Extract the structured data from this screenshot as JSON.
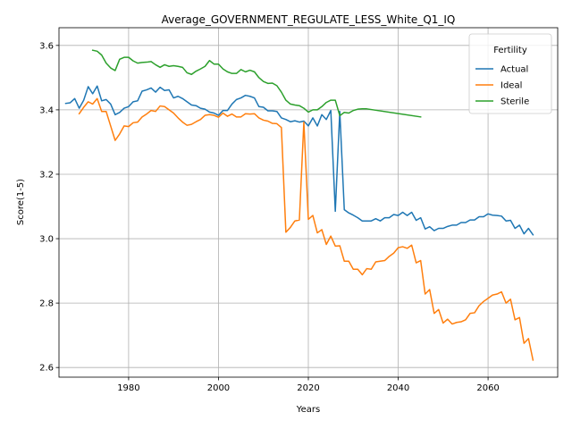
{
  "chart_data": {
    "type": "line",
    "title": "Average_GOVERNMENT_REGULATE_LESS_White_Q1_IQ",
    "xlabel": "Years",
    "ylabel": "Score(1-5)",
    "xlim": [
      1964.5,
      2075.5
    ],
    "ylim": [
      2.57,
      3.655
    ],
    "xticks": [
      1980,
      2000,
      2020,
      2040,
      2060
    ],
    "yticks": [
      2.6,
      2.8,
      3.0,
      3.2,
      3.4,
      3.6
    ],
    "ytick_labels": [
      "2.6",
      "2.8",
      "3.0",
      "3.2",
      "3.4",
      "3.6"
    ],
    "grid": true,
    "legend": {
      "title": "Fertility",
      "position": "top-right"
    },
    "series": [
      {
        "name": "Actual",
        "color": "#1f77b4",
        "x": [
          1966,
          1967,
          1968,
          1969,
          1970,
          1971,
          1972,
          1973,
          1974,
          1975,
          1976,
          1977,
          1978,
          1979,
          1980,
          1981,
          1982,
          1983,
          1984,
          1985,
          1986,
          1987,
          1988,
          1989,
          1990,
          1991,
          1992,
          1993,
          1994,
          1995,
          1996,
          1997,
          1998,
          1999,
          2000,
          2001,
          2002,
          2003,
          2004,
          2005,
          2006,
          2007,
          2008,
          2009,
          2010,
          2011,
          2012,
          2013,
          2014,
          2015,
          2016,
          2017,
          2018,
          2019,
          2020,
          2021,
          2022,
          2023,
          2024,
          2025,
          2026,
          2027,
          2028,
          2029,
          2030,
          2031,
          2032,
          2033,
          2034,
          2035,
          2036,
          2037,
          2038,
          2039,
          2040,
          2041,
          2042,
          2043,
          2044,
          2045,
          2046,
          2047,
          2048,
          2049,
          2050,
          2051,
          2052,
          2053,
          2054,
          2055,
          2056,
          2057,
          2058,
          2059,
          2060,
          2061,
          2062,
          2063,
          2064,
          2065,
          2066,
          2067,
          2068,
          2069,
          2070
        ],
        "y": [
          3.42,
          3.422,
          3.435,
          3.405,
          3.43,
          3.472,
          3.45,
          3.474,
          3.428,
          3.432,
          3.418,
          3.385,
          3.392,
          3.405,
          3.41,
          3.425,
          3.428,
          3.458,
          3.462,
          3.468,
          3.455,
          3.47,
          3.46,
          3.462,
          3.437,
          3.442,
          3.435,
          3.425,
          3.415,
          3.413,
          3.405,
          3.402,
          3.393,
          3.39,
          3.383,
          3.398,
          3.398,
          3.418,
          3.432,
          3.437,
          3.445,
          3.442,
          3.437,
          3.41,
          3.408,
          3.397,
          3.397,
          3.395,
          3.375,
          3.37,
          3.363,
          3.366,
          3.362,
          3.365,
          3.35,
          3.375,
          3.35,
          3.385,
          3.37,
          3.398,
          3.085,
          3.395,
          3.09,
          3.08,
          3.073,
          3.065,
          3.055,
          3.055,
          3.055,
          3.062,
          3.055,
          3.065,
          3.065,
          3.075,
          3.072,
          3.082,
          3.072,
          3.082,
          3.057,
          3.065,
          3.03,
          3.037,
          3.025,
          3.032,
          3.032,
          3.038,
          3.042,
          3.042,
          3.05,
          3.05,
          3.058,
          3.058,
          3.068,
          3.068,
          3.077,
          3.073,
          3.072,
          3.07,
          3.055,
          3.057,
          3.032,
          3.042,
          3.015,
          3.032,
          3.012
        ]
      },
      {
        "name": "Ideal",
        "color": "#ff7f0e",
        "x": [
          1969,
          1970,
          1971,
          1972,
          1973,
          1974,
          1975,
          1976,
          1977,
          1978,
          1979,
          1980,
          1981,
          1982,
          1983,
          1984,
          1985,
          1986,
          1987,
          1988,
          1989,
          1990,
          1991,
          1992,
          1993,
          1994,
          1995,
          1996,
          1997,
          1998,
          1999,
          2000,
          2001,
          2002,
          2003,
          2004,
          2005,
          2006,
          2007,
          2008,
          2009,
          2010,
          2011,
          2012,
          2013,
          2014,
          2015,
          2016,
          2017,
          2018,
          2019,
          2020,
          2021,
          2022,
          2023,
          2024,
          2025,
          2026,
          2027,
          2028,
          2029,
          2030,
          2031,
          2032,
          2033,
          2034,
          2035,
          2036,
          2037,
          2038,
          2039,
          2040,
          2041,
          2042,
          2043,
          2044,
          2045,
          2046,
          2047,
          2048,
          2049,
          2050,
          2051,
          2052,
          2053,
          2054,
          2055,
          2056,
          2057,
          2058,
          2059,
          2060,
          2061,
          2062,
          2063,
          2064,
          2065,
          2066,
          2067,
          2068,
          2069,
          2070
        ],
        "y": [
          3.388,
          3.408,
          3.425,
          3.418,
          3.435,
          3.395,
          3.395,
          3.35,
          3.305,
          3.325,
          3.35,
          3.348,
          3.36,
          3.362,
          3.378,
          3.387,
          3.398,
          3.395,
          3.412,
          3.41,
          3.4,
          3.39,
          3.375,
          3.362,
          3.352,
          3.355,
          3.363,
          3.37,
          3.383,
          3.385,
          3.383,
          3.377,
          3.39,
          3.38,
          3.387,
          3.378,
          3.378,
          3.388,
          3.387,
          3.388,
          3.375,
          3.368,
          3.365,
          3.358,
          3.357,
          3.345,
          3.02,
          3.035,
          3.055,
          3.058,
          3.362,
          3.06,
          3.072,
          3.018,
          3.028,
          2.982,
          3.008,
          2.977,
          2.978,
          2.93,
          2.93,
          2.905,
          2.905,
          2.888,
          2.907,
          2.905,
          2.928,
          2.93,
          2.932,
          2.945,
          2.955,
          2.972,
          2.975,
          2.97,
          2.98,
          2.925,
          2.932,
          2.828,
          2.842,
          2.768,
          2.78,
          2.738,
          2.75,
          2.735,
          2.74,
          2.742,
          2.748,
          2.768,
          2.77,
          2.792,
          2.805,
          2.815,
          2.825,
          2.828,
          2.835,
          2.8,
          2.812,
          2.748,
          2.755,
          2.675,
          2.69,
          2.623
        ]
      },
      {
        "name": "Sterile",
        "color": "#2ca02c",
        "x": [
          1972,
          1973,
          1974,
          1975,
          1976,
          1977,
          1978,
          1979,
          1980,
          1981,
          1982,
          1983,
          1984,
          1985,
          1986,
          1987,
          1988,
          1989,
          1990,
          1991,
          1992,
          1993,
          1994,
          1995,
          1996,
          1997,
          1998,
          1999,
          2000,
          2001,
          2002,
          2003,
          2004,
          2005,
          2006,
          2007,
          2008,
          2009,
          2010,
          2011,
          2012,
          2013,
          2014,
          2015,
          2016,
          2017,
          2018,
          2019,
          2020,
          2021,
          2022,
          2023,
          2024,
          2025,
          2026,
          2027,
          2028,
          2029,
          2030,
          2031,
          2032,
          2033,
          2045
        ],
        "y": [
          3.585,
          3.582,
          3.57,
          3.545,
          3.53,
          3.522,
          3.557,
          3.563,
          3.563,
          3.552,
          3.545,
          3.547,
          3.548,
          3.55,
          3.54,
          3.532,
          3.54,
          3.535,
          3.537,
          3.535,
          3.532,
          3.515,
          3.51,
          3.52,
          3.527,
          3.535,
          3.553,
          3.542,
          3.542,
          3.527,
          3.518,
          3.513,
          3.513,
          3.525,
          3.518,
          3.523,
          3.518,
          3.5,
          3.488,
          3.482,
          3.483,
          3.475,
          3.455,
          3.43,
          3.418,
          3.415,
          3.413,
          3.405,
          3.393,
          3.4,
          3.4,
          3.41,
          3.423,
          3.43,
          3.43,
          3.382,
          3.392,
          3.39,
          3.398,
          3.402,
          3.403,
          3.403,
          3.378
        ]
      }
    ]
  }
}
